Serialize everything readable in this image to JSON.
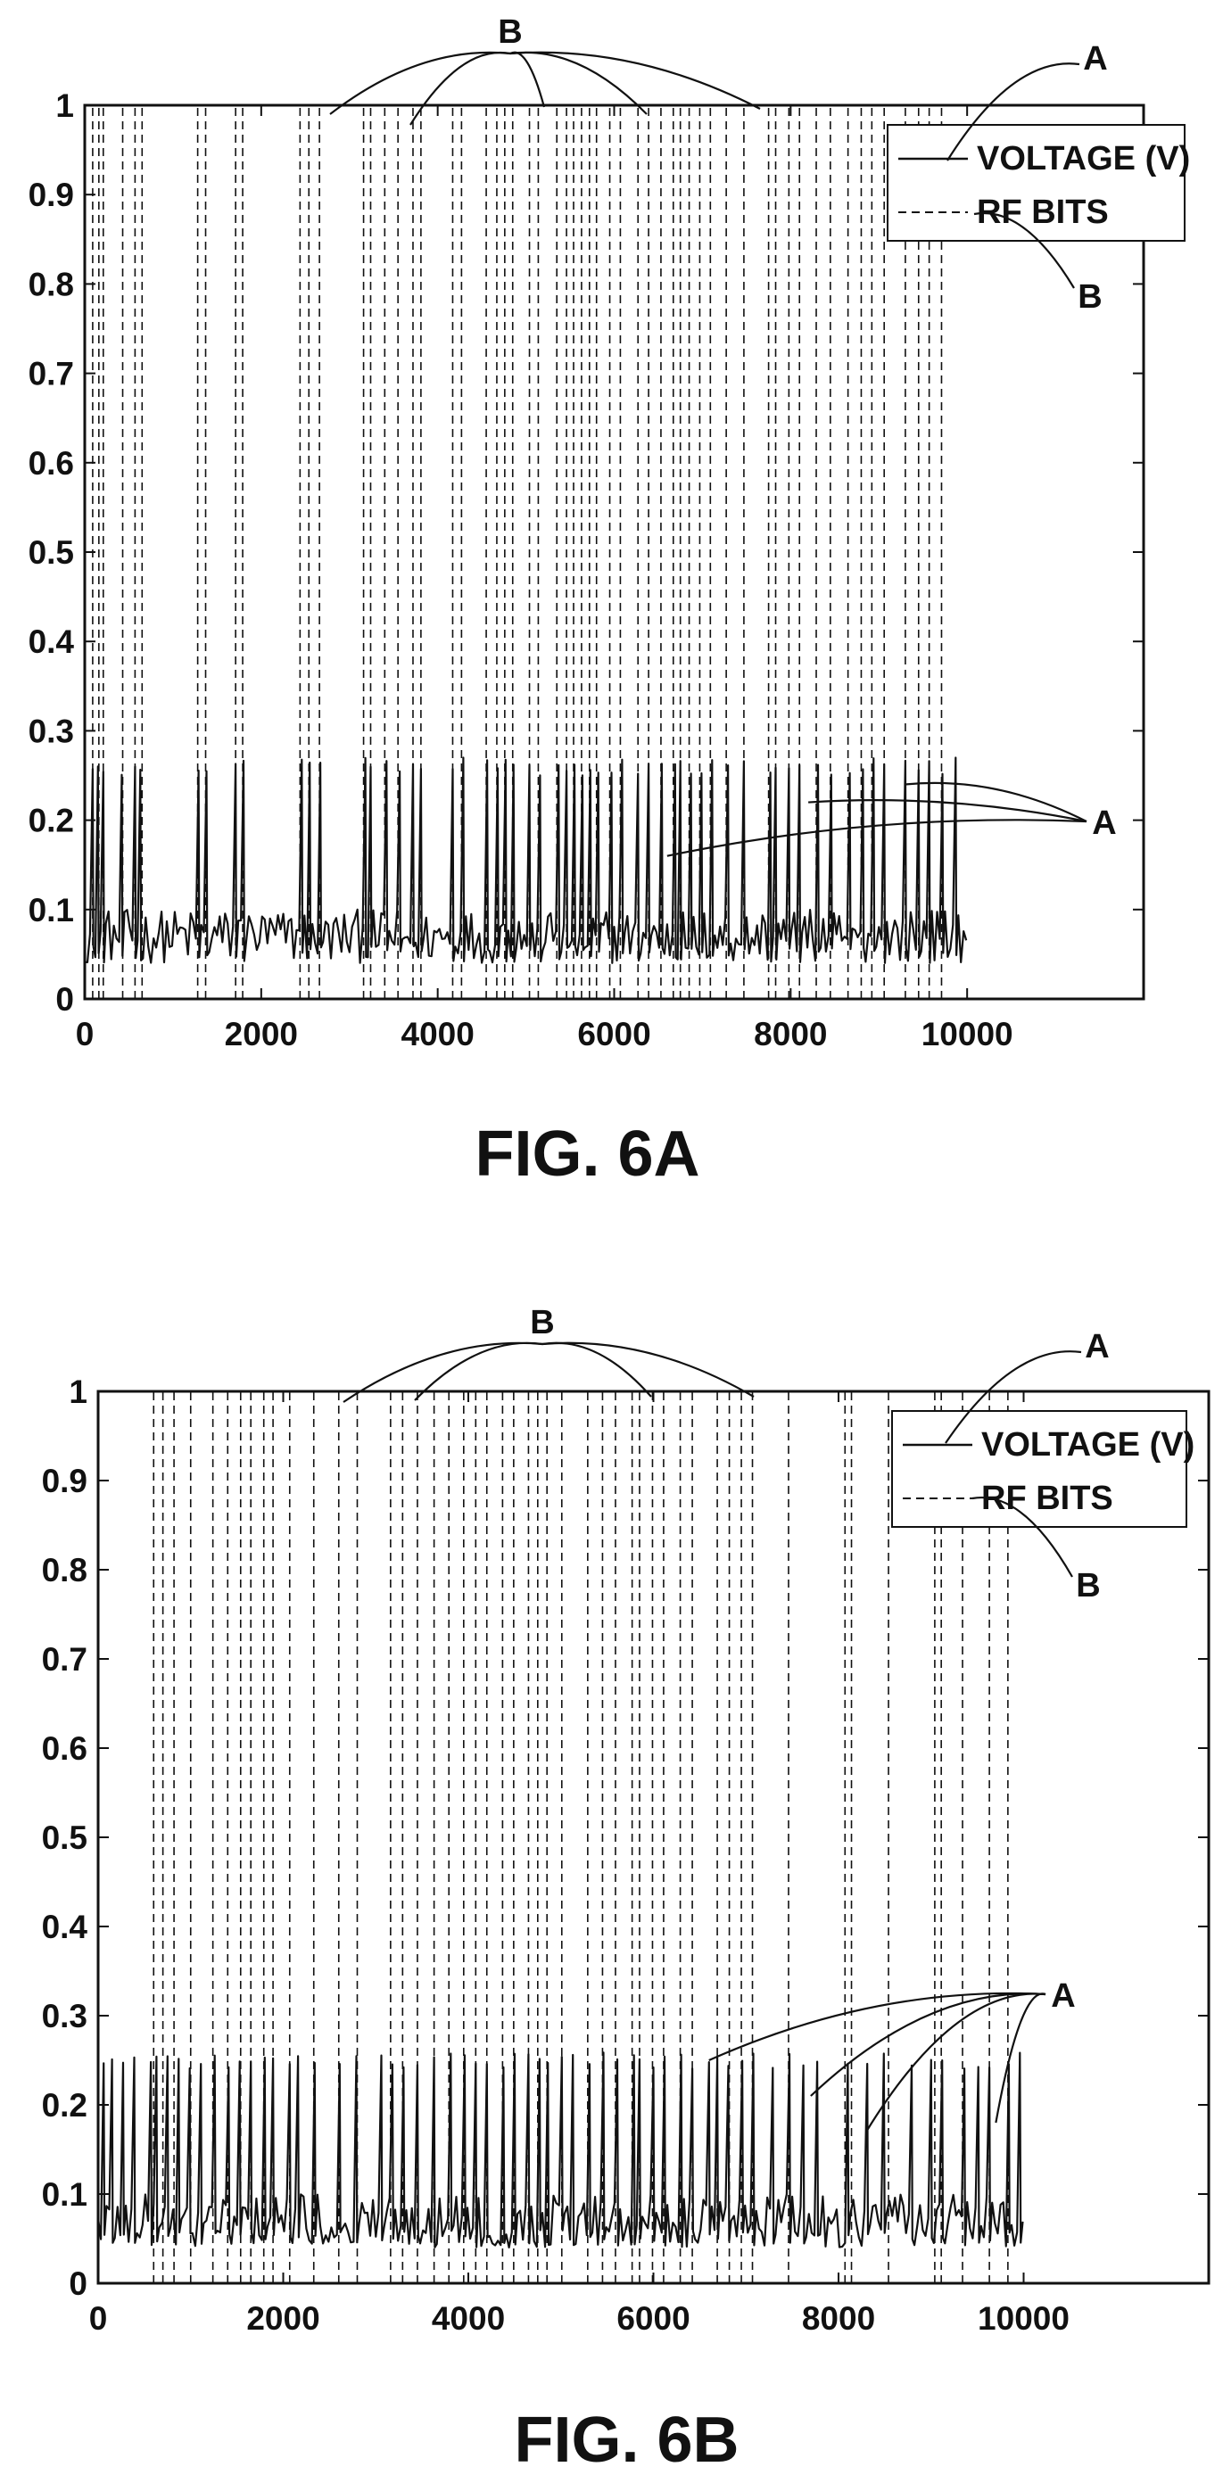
{
  "chart_data": [
    {
      "type": "line",
      "caption": "FIG. 6A",
      "xlim": [
        0,
        12000
      ],
      "ylim": [
        0,
        1
      ],
      "x_ticks": [
        0,
        2000,
        4000,
        6000,
        8000,
        10000
      ],
      "y_ticks": [
        0,
        0.1,
        0.2,
        0.3,
        0.4,
        0.5,
        0.6,
        0.7,
        0.8,
        0.9,
        1
      ],
      "grid": false,
      "legend_position": "top-right",
      "legend": [
        {
          "label": "VOLTAGE (V)",
          "style": "solid"
        },
        {
          "label": "RF BITS",
          "style": "dashed"
        }
      ],
      "callouts": {
        "a": "A",
        "b": "B"
      },
      "series": [
        {
          "name": "VOLTAGE (V)",
          "style": "solid",
          "x_end": 10000,
          "baseline_range": [
            0.04,
            0.1
          ],
          "spike_peak": 0.27,
          "spike_x": [
            80,
            150,
            200,
            420,
            560,
            640,
            1300,
            1380,
            1720,
            1800,
            2460,
            2560,
            2670,
            3170,
            3250,
            3410,
            3560,
            3730,
            3820,
            4180,
            4280,
            4560,
            4680,
            4770,
            4860,
            5050,
            5150,
            5360,
            5470,
            5550,
            5640,
            5730,
            5810,
            5960,
            6080,
            6280,
            6400,
            6540,
            6680,
            6760,
            6860,
            6980,
            7100,
            7280,
            7480,
            7760,
            7840,
            7990,
            8110,
            8300,
            8460,
            8660,
            8810,
            8930,
            9070,
            9310,
            9460,
            9580,
            9720,
            9880
          ]
        },
        {
          "name": "RF BITS",
          "style": "dashed",
          "y": 1,
          "x": [
            90,
            160,
            210,
            430,
            570,
            650,
            1280,
            1370,
            1710,
            1790,
            2440,
            2540,
            2660,
            3160,
            3240,
            3400,
            3550,
            3720,
            3810,
            4170,
            4270,
            4550,
            4670,
            4760,
            4850,
            5040,
            5140,
            5350,
            5460,
            5540,
            5630,
            5720,
            5800,
            5950,
            6070,
            6270,
            6390,
            6530,
            6670,
            6750,
            6850,
            6970,
            7090,
            7270,
            7470,
            7750,
            7830,
            7980,
            8100,
            8290,
            8450,
            8650,
            8800,
            8920,
            9060,
            9300,
            9450,
            9570,
            9710
          ]
        }
      ]
    },
    {
      "type": "line",
      "caption": "FIG. 6B",
      "xlim": [
        0,
        12000
      ],
      "ylim": [
        0,
        1
      ],
      "x_ticks": [
        0,
        2000,
        4000,
        6000,
        8000,
        10000
      ],
      "y_ticks": [
        0,
        0.1,
        0.2,
        0.3,
        0.4,
        0.5,
        0.6,
        0.7,
        0.8,
        0.9,
        1
      ],
      "grid": false,
      "legend_position": "top-right",
      "legend": [
        {
          "label": "VOLTAGE (V)",
          "style": "solid"
        },
        {
          "label": "RF BITS",
          "style": "dashed"
        }
      ],
      "callouts": {
        "a": "A",
        "b": "B"
      },
      "series": [
        {
          "name": "VOLTAGE (V)",
          "style": "solid",
          "x_end": 10000,
          "baseline_range": [
            0.04,
            0.1
          ],
          "spike_peak": 0.26,
          "spike_x": [
            60,
            160,
            280,
            400,
            560,
            640,
            760,
            860,
            1000,
            1100,
            1250,
            1400,
            1540,
            1650,
            1790,
            1900,
            2080,
            2160,
            2350,
            2620,
            2800,
            3060,
            3170,
            3300,
            3460,
            3640,
            3800,
            3960,
            4090,
            4200,
            4380,
            4500,
            4660,
            4760,
            4860,
            5020,
            5140,
            5300,
            5460,
            5600,
            5780,
            5860,
            6000,
            6120,
            6300,
            6430,
            6600,
            6700,
            6820,
            6960,
            7080,
            7300,
            7480,
            7620,
            7770,
            8100,
            8300,
            8480,
            8800,
            9000,
            9120,
            9350,
            9520,
            9640,
            9840,
            9960
          ]
        },
        {
          "name": "RF BITS",
          "style": "dashed",
          "y": 1,
          "x": [
            600,
            700,
            820,
            1000,
            1240,
            1400,
            1540,
            1650,
            1790,
            1890,
            2070,
            2330,
            2600,
            2800,
            3160,
            3290,
            3450,
            3630,
            3790,
            3950,
            4080,
            4200,
            4370,
            4490,
            4650,
            4750,
            4850,
            5010,
            5290,
            5450,
            5590,
            5770,
            5850,
            5990,
            6110,
            6290,
            6420,
            6690,
            6820,
            6950,
            7070,
            7460,
            8070,
            8140,
            8540,
            9040,
            9110,
            9340,
            9630,
            9830
          ]
        }
      ]
    }
  ]
}
